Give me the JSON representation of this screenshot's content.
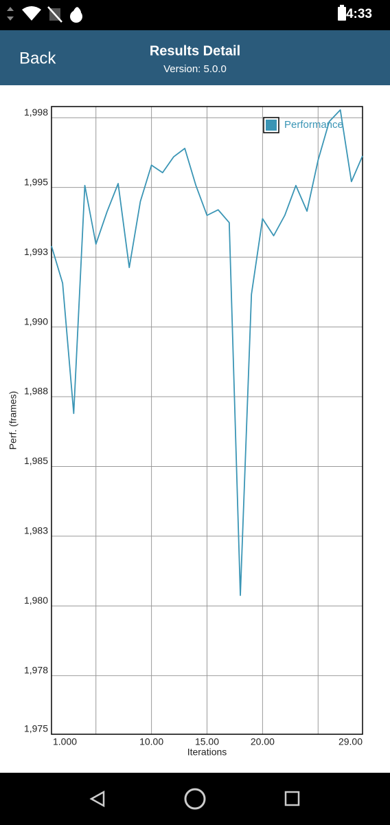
{
  "status_bar": {
    "time": "4:33"
  },
  "header": {
    "back": "Back",
    "title": "Results Detail",
    "subtitle": "Version: 5.0.0"
  },
  "chart_data": {
    "type": "line",
    "y_label": "Perf. (frames)",
    "x_label": "Iterations",
    "x": [
      1,
      2,
      3,
      4,
      5,
      6,
      7,
      8,
      9,
      10,
      11,
      12,
      13,
      14,
      15,
      16,
      17,
      18,
      19,
      20,
      21,
      22,
      23,
      24,
      25,
      26,
      27,
      28,
      29
    ],
    "series": [
      {
        "name": "Performance",
        "color": "#3a95b5",
        "values": [
          1992.9,
          1991.57,
          1986.9,
          1995.07,
          1992.97,
          1994.13,
          1995.14,
          1992.13,
          1994.5,
          1995.8,
          1995.53,
          1996.1,
          1996.4,
          1995.07,
          1994.0,
          1994.2,
          1993.74,
          1980.38,
          1991.17,
          1993.88,
          1993.27,
          1994.0,
          1995.07,
          1994.15,
          1995.98,
          1997.36,
          1997.78,
          1995.21,
          1996.13
        ]
      }
    ],
    "xlim": [
      1,
      29
    ],
    "ylim": [
      1975.4,
      1997.9
    ],
    "xticks": [
      {
        "value": 1,
        "label": "1.000"
      },
      {
        "value": 10,
        "label": "10.00"
      },
      {
        "value": 15,
        "label": "15.00"
      },
      {
        "value": 20,
        "label": "20.00"
      },
      {
        "value": 29,
        "label": "29.00"
      }
    ],
    "xgrid": [
      5,
      10,
      15,
      20,
      25
    ],
    "yticks": [
      {
        "value": 1997.5,
        "label": "1,998"
      },
      {
        "value": 1995,
        "label": "1,995"
      },
      {
        "value": 1992.5,
        "label": "1,993"
      },
      {
        "value": 1990,
        "label": "1,990"
      },
      {
        "value": 1987.5,
        "label": "1,988"
      },
      {
        "value": 1985,
        "label": "1,985"
      },
      {
        "value": 1982.5,
        "label": "1,983"
      },
      {
        "value": 1980,
        "label": "1,980"
      },
      {
        "value": 1977.5,
        "label": "1,978"
      },
      {
        "value": 1975.4,
        "label": "1,975"
      }
    ],
    "grid": true,
    "legend": "top-right"
  }
}
